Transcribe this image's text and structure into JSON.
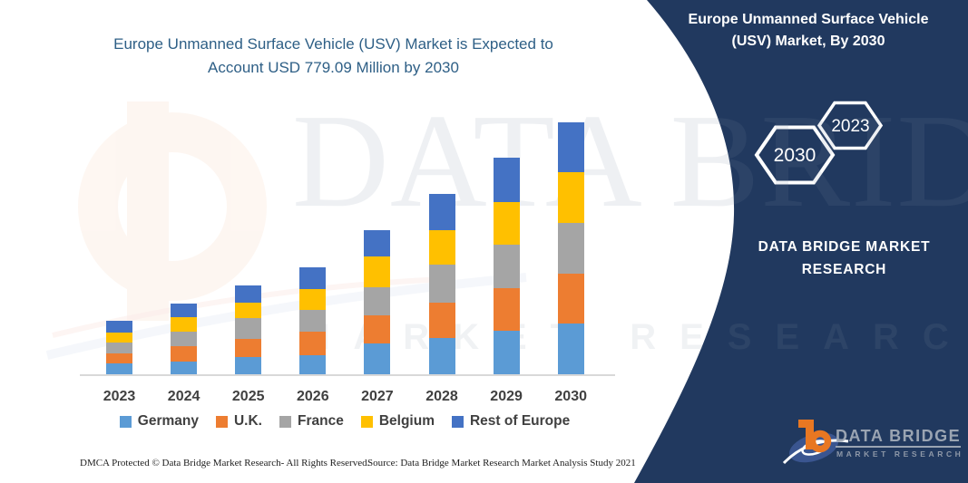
{
  "chart": {
    "title": "Europe Unmanned Surface Vehicle (USV) Market is Expected to Account USD 779.09 Million by 2030",
    "title_color": "#2e5f86",
    "footer_left": "DMCA Protected © Data Bridge Market Research-  All Rights Reserved.",
    "footer_right": "Source: Data Bridge Market Research  Market Analysis Study 2021"
  },
  "chart_data": {
    "type": "bar",
    "stacked": true,
    "title": "Europe Unmanned Surface Vehicle (USV) Market is Expected to Account USD 779.09 Million by 2030",
    "unit": "USD Million",
    "categories": [
      "2023",
      "2024",
      "2025",
      "2026",
      "2027",
      "2028",
      "2029",
      "2030"
    ],
    "series": [
      {
        "name": "Germany",
        "color": "#5B9BD5",
        "values": [
          34,
          40,
          54,
          59,
          94,
          111,
          135,
          156
        ]
      },
      {
        "name": "U.K.",
        "color": "#ED7D31",
        "values": [
          30,
          47,
          54,
          72,
          88,
          110,
          131,
          156
        ]
      },
      {
        "name": "France",
        "color": "#A5A5A5",
        "values": [
          33,
          44,
          65,
          68,
          87,
          118,
          134,
          156
        ]
      },
      {
        "name": "Belgium",
        "color": "#FFC000",
        "values": [
          31,
          45,
          49,
          65,
          96,
          107,
          132,
          156
        ]
      },
      {
        "name": "Rest of Europe",
        "color": "#4472C4",
        "values": [
          37,
          43,
          53,
          67,
          81,
          110,
          137,
          155.09
        ]
      }
    ],
    "totals": [
      165,
      219,
      275,
      331,
      446,
      556,
      669,
      779.09
    ],
    "ylim": [
      0,
      820
    ],
    "grid": false,
    "legend_position": "bottom",
    "xlabel": "",
    "ylabel": ""
  },
  "sidebar": {
    "title": "Europe Unmanned Surface Vehicle (USV) Market, By 2030",
    "badges": [
      "2030",
      "2023"
    ],
    "brand": "DATA BRIDGE MARKET RESEARCH",
    "bg_color": "#21395f",
    "logo": {
      "name": "DATA BRIDGE",
      "sub": "MARKET RESEARCH",
      "orange": "#E87722"
    }
  },
  "watermark": {
    "line1": "DATA BRIDGE",
    "line2": "MARKET RESEARCH"
  },
  "footer": {
    "left": "DMCA Protected © Data Bridge Market Research-  All Rights Reserved.",
    "right": "Source: Data Bridge Market Research  Market Analysis Study 2021"
  }
}
